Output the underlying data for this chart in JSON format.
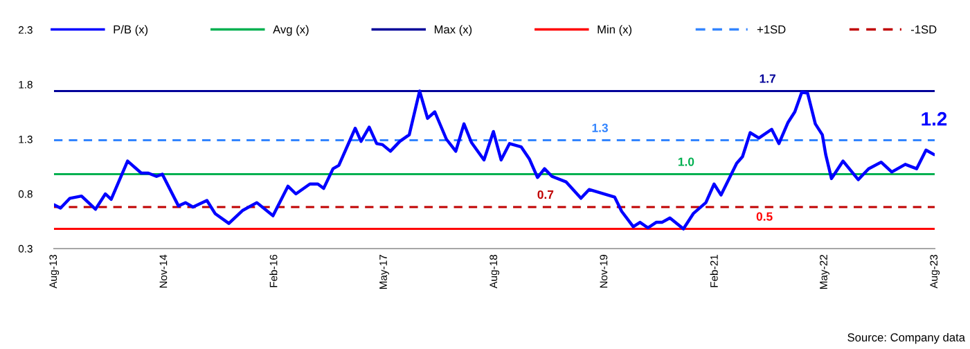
{
  "chart_data": {
    "type": "line",
    "annotations": [
      "Source: Company data"
    ],
    "xlim": [
      "2013-08-01",
      "2023-08-01"
    ],
    "xticks": [
      {
        "value": "2013-08-01",
        "label": "Aug-13"
      },
      {
        "value": "2014-11-01",
        "label": "Nov-14"
      },
      {
        "value": "2016-02-01",
        "label": "Feb-16"
      },
      {
        "value": "2017-05-01",
        "label": "May-17"
      },
      {
        "value": "2018-08-01",
        "label": "Aug-18"
      },
      {
        "value": "2019-11-01",
        "label": "Nov-19"
      },
      {
        "value": "2021-02-01",
        "label": "Feb-21"
      },
      {
        "value": "2022-05-01",
        "label": "May-22"
      },
      {
        "value": "2023-08-01",
        "label": "Aug-23"
      }
    ],
    "ylim": [
      0.3,
      2.3
    ],
    "yticks": [
      0.3,
      0.8,
      1.3,
      1.8,
      2.3
    ],
    "grid": false,
    "legend": "top",
    "marker": "none",
    "series": [
      {
        "name": "P/B (x)",
        "color": "#0000ff",
        "line_style": "solid",
        "x": [
          "2013-08-01",
          "2013-08-28",
          "2013-10-06",
          "2013-11-23",
          "2014-01-20",
          "2014-03-02",
          "2014-03-26",
          "2014-06-02",
          "2014-07-29",
          "2014-08-27",
          "2014-09-30",
          "2014-10-24",
          "2014-12-30",
          "2015-01-28",
          "2015-02-28",
          "2015-04-27",
          "2015-05-31",
          "2015-07-27",
          "2015-09-23",
          "2015-11-20",
          "2016-01-26",
          "2016-03-28",
          "2016-04-30",
          "2016-06-27",
          "2016-07-30",
          "2016-08-23",
          "2016-10-01",
          "2016-10-25",
          "2017-01-01",
          "2017-01-25",
          "2017-02-28",
          "2017-03-31",
          "2017-04-24",
          "2017-05-27",
          "2017-07-05",
          "2017-08-13",
          "2017-09-25",
          "2017-10-28",
          "2017-11-27",
          "2018-01-14",
          "2018-02-22",
          "2018-03-28",
          "2018-04-28",
          "2018-06-19",
          "2018-07-28",
          "2018-08-29",
          "2018-10-03",
          "2018-11-20",
          "2018-12-24",
          "2019-01-27",
          "2019-02-25",
          "2019-03-28",
          "2019-05-25",
          "2019-07-26",
          "2019-08-29",
          "2019-12-13",
          "2020-01-11",
          "2020-02-28",
          "2020-03-27",
          "2020-04-29",
          "2020-06-02",
          "2020-06-26",
          "2020-07-29",
          "2020-09-23",
          "2020-11-03",
          "2020-12-25",
          "2021-01-28",
          "2021-02-26",
          "2021-05-02",
          "2021-05-26",
          "2021-06-27",
          "2021-08-02",
          "2021-09-24",
          "2021-10-24",
          "2021-11-30",
          "2021-12-29",
          "2022-01-27",
          "2022-02-20",
          "2022-03-24",
          "2022-04-22",
          "2022-05-06",
          "2022-05-30",
          "2022-07-17",
          "2022-09-18",
          "2022-10-31",
          "2022-12-22",
          "2023-02-04",
          "2023-04-01",
          "2023-05-18",
          "2023-06-26",
          "2023-07-29"
        ],
        "values": [
          0.7,
          0.67,
          0.76,
          0.78,
          0.66,
          0.8,
          0.75,
          1.1,
          0.99,
          0.99,
          0.96,
          0.98,
          0.69,
          0.72,
          0.68,
          0.74,
          0.62,
          0.53,
          0.65,
          0.72,
          0.6,
          0.87,
          0.8,
          0.89,
          0.89,
          0.85,
          1.03,
          1.06,
          1.4,
          1.28,
          1.41,
          1.26,
          1.25,
          1.19,
          1.28,
          1.34,
          1.74,
          1.49,
          1.55,
          1.3,
          1.19,
          1.44,
          1.27,
          1.11,
          1.37,
          1.11,
          1.26,
          1.23,
          1.12,
          0.95,
          1.03,
          0.96,
          0.91,
          0.76,
          0.84,
          0.77,
          0.64,
          0.5,
          0.54,
          0.49,
          0.54,
          0.54,
          0.58,
          0.48,
          0.62,
          0.72,
          0.89,
          0.79,
          1.08,
          1.14,
          1.36,
          1.31,
          1.39,
          1.26,
          1.45,
          1.55,
          1.73,
          1.72,
          1.44,
          1.34,
          1.16,
          0.94,
          1.1,
          0.93,
          1.03,
          1.09,
          1.0,
          1.07,
          1.03,
          1.2,
          1.16
        ],
        "value_labels": [
          null,
          null,
          null,
          null,
          null,
          null,
          null,
          null,
          null,
          null,
          null,
          null,
          null,
          null,
          null,
          null,
          null,
          null,
          null,
          null,
          null,
          null,
          null,
          null,
          null,
          null,
          null,
          null,
          null,
          null,
          null,
          null,
          null,
          null,
          null,
          null,
          null,
          null,
          null,
          null,
          null,
          null,
          null,
          null,
          null,
          null,
          null,
          null,
          null,
          null,
          null,
          null,
          null,
          null,
          null,
          null,
          null,
          null,
          null,
          null,
          null,
          null,
          null,
          null,
          null,
          null,
          null,
          null,
          null,
          null,
          null,
          null,
          null,
          null,
          null,
          null,
          null,
          null,
          null,
          null,
          null,
          null,
          null,
          null,
          null,
          null,
          null,
          null,
          null,
          null,
          "1.2"
        ]
      },
      {
        "name": "Avg (x)",
        "color": "#00b050",
        "line_style": "solid",
        "x": [
          "2013-08-01",
          "2020-10-04",
          "2023-08-01"
        ],
        "values": [
          0.98,
          0.98,
          0.98
        ],
        "value_labels": [
          null,
          "1.0",
          null
        ]
      },
      {
        "name": "Max (x)",
        "color": "#000099",
        "line_style": "solid",
        "x": [
          "2013-08-01",
          "2021-09-07",
          "2023-08-01"
        ],
        "values": [
          1.74,
          1.74,
          1.74
        ],
        "value_labels": [
          null,
          "1.7",
          null
        ]
      },
      {
        "name": "Min (x)",
        "color": "#ff0000",
        "line_style": "solid",
        "x": [
          "2013-08-01",
          "2021-08-25",
          "2023-08-01"
        ],
        "values": [
          0.48,
          0.48,
          0.48
        ],
        "value_labels": [
          null,
          "0.5",
          null
        ]
      },
      {
        "name": "+1SD",
        "color": "#3385ff",
        "line_style": "dashed",
        "x": [
          "2013-08-01",
          "2019-10-13",
          "2023-08-01"
        ],
        "values": [
          1.29,
          1.29,
          1.29
        ],
        "value_labels": [
          null,
          "1.3",
          null
        ]
      },
      {
        "name": "-1SD",
        "color": "#c00000",
        "line_style": "dashed",
        "x": [
          "2013-08-01",
          "2019-03-01",
          "2023-08-01"
        ],
        "values": [
          0.68,
          0.68,
          0.68
        ],
        "value_labels": [
          null,
          "0.7",
          null
        ]
      }
    ]
  }
}
